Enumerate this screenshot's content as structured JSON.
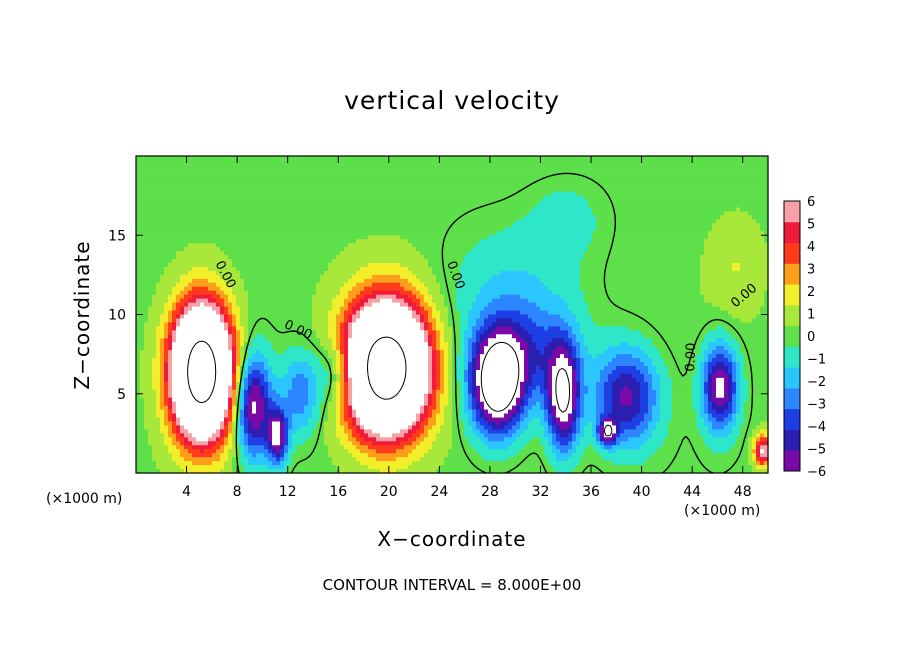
{
  "chart_data": {
    "type": "heatmap",
    "title": "vertical velocity",
    "xlabel": "X−coordinate",
    "ylabel": "Z−coordinate",
    "x_unit_left": "(×1000 m)",
    "x_unit_right": "(×1000 m)",
    "xlim": [
      0,
      50
    ],
    "ylim": [
      0,
      20
    ],
    "x_ticks": [
      "4",
      "8",
      "12",
      "16",
      "20",
      "24",
      "28",
      "32",
      "36",
      "40",
      "44",
      "48"
    ],
    "x_tick_values": [
      4,
      8,
      12,
      16,
      20,
      24,
      28,
      32,
      36,
      40,
      44,
      48
    ],
    "y_ticks": [
      "5",
      "10",
      "15"
    ],
    "y_tick_values": [
      5,
      10,
      15
    ],
    "colorbar": {
      "labels": [
        "6",
        "5",
        "4",
        "3",
        "2",
        "1",
        "0",
        "−1",
        "−2",
        "−3",
        "−4",
        "−5",
        "−6"
      ],
      "range": [
        -6,
        6
      ]
    },
    "contour_labels": [
      {
        "text": "0.00",
        "x": 6.8,
        "y": 12.4,
        "rot": 62
      },
      {
        "text": "0.00",
        "x": 12.7,
        "y": 8.8,
        "rot": 25
      },
      {
        "text": "0.00",
        "x": 25.0,
        "y": 12.4,
        "rot": 70
      },
      {
        "text": "0.00",
        "x": 44.2,
        "y": 7.3,
        "rot": -88
      },
      {
        "text": "0.00",
        "x": 48.3,
        "y": 11.0,
        "rot": -40
      }
    ],
    "features": [
      {
        "x": 5.2,
        "z": 6.4,
        "rx": 2.3,
        "rz": 4.0,
        "amp": 20
      },
      {
        "x": 19.8,
        "z": 6.6,
        "rx": 3.2,
        "rz": 4.0,
        "amp": 20
      },
      {
        "x": 49.6,
        "z": 1.4,
        "rx": 0.7,
        "rz": 1.0,
        "amp": 6.5
      },
      {
        "x": 47.5,
        "z": 13.0,
        "rx": 2.0,
        "rz": 3.0,
        "amp": 1.2
      },
      {
        "x": 9.3,
        "z": 4.2,
        "rx": 1.4,
        "rz": 3.2,
        "amp": -7.5
      },
      {
        "x": 11.2,
        "z": 2.3,
        "rx": 0.8,
        "rz": 1.7,
        "amp": -7.0
      },
      {
        "x": 13.0,
        "z": 5.0,
        "rx": 1.6,
        "rz": 2.6,
        "amp": -3.5
      },
      {
        "x": 16.0,
        "z": 6.3,
        "rx": 1.6,
        "rz": 2.2,
        "amp": -3.5
      },
      {
        "x": 28.6,
        "z": 5.6,
        "rx": 2.1,
        "rz": 3.1,
        "amp": -10.5
      },
      {
        "x": 31.0,
        "z": 7.6,
        "rx": 3.6,
        "rz": 3.0,
        "amp": -3.0
      },
      {
        "x": 33.8,
        "z": 4.8,
        "rx": 1.3,
        "rz": 3.3,
        "amp": -8.5
      },
      {
        "x": 38.8,
        "z": 4.8,
        "rx": 2.5,
        "rz": 3.0,
        "amp": -6.0
      },
      {
        "x": 37.3,
        "z": 2.6,
        "rx": 0.7,
        "rz": 0.8,
        "amp": -7.0
      },
      {
        "x": 46.2,
        "z": 5.4,
        "rx": 1.4,
        "rz": 2.7,
        "amp": -7.2
      },
      {
        "x": 29.5,
        "z": 11.0,
        "rx": 5.0,
        "rz": 4.5,
        "amp": -1.7
      },
      {
        "x": 34.0,
        "z": 16.0,
        "rx": 3.0,
        "rz": 2.5,
        "amp": -1.2
      }
    ]
  },
  "contour_note": "CONTOUR INTERVAL = 8.000E+00"
}
